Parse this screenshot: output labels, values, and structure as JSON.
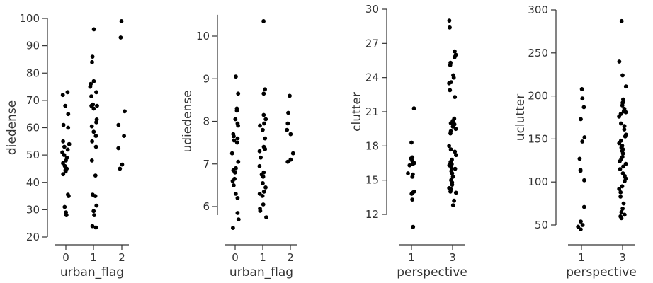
{
  "chart_data": [
    {
      "type": "scatter",
      "xlabel": "urban_flag",
      "ylabel": "diedense",
      "categories": [
        "0",
        "1",
        "2"
      ],
      "ylim": [
        20,
        100
      ],
      "yticks": [
        20,
        30,
        40,
        50,
        60,
        70,
        80,
        90,
        100
      ],
      "points": [
        {
          "x": "0",
          "y": [
            73,
            72,
            68,
            65,
            61,
            60,
            55,
            54,
            53,
            52,
            51,
            50,
            49,
            48,
            47,
            46,
            45,
            44.5,
            44,
            43,
            35.5,
            35,
            31,
            29,
            28
          ]
        },
        {
          "x": "1",
          "y": [
            96,
            86,
            84,
            77,
            76,
            75,
            73,
            71.5,
            68.5,
            68,
            68,
            67,
            63,
            62,
            60.5,
            58.5,
            57,
            55,
            53,
            48,
            42.5,
            35.5,
            35,
            31.5,
            29.5,
            28,
            24,
            23.5
          ]
        },
        {
          "x": "2",
          "y": [
            99,
            93,
            66,
            61,
            57,
            52.5,
            46.5,
            45
          ]
        }
      ]
    },
    {
      "type": "scatter",
      "xlabel": "urban_flag",
      "ylabel": "udiedense",
      "categories": [
        "0",
        "1",
        "2"
      ],
      "ylim": [
        5.8,
        10.5
      ],
      "yticks": [
        6,
        7,
        8,
        9,
        10
      ],
      "points": [
        {
          "x": "0",
          "y": [
            9.05,
            8.65,
            8.3,
            8.25,
            8.05,
            7.95,
            7.9,
            7.7,
            7.65,
            7.6,
            7.55,
            7.5,
            7.25,
            7.05,
            6.9,
            6.85,
            6.8,
            6.65,
            6.6,
            6.5,
            6.3,
            6.2,
            5.85,
            5.7,
            5.5
          ]
        },
        {
          "x": "1",
          "y": [
            10.35,
            8.75,
            8.65,
            8.15,
            8.05,
            7.95,
            7.9,
            7.8,
            7.6,
            7.4,
            7.35,
            7.3,
            7.15,
            6.95,
            6.8,
            6.75,
            6.7,
            6.55,
            6.45,
            6.35,
            6.3,
            6.25,
            6.05,
            5.95,
            5.9,
            5.75
          ]
        },
        {
          "x": "2",
          "y": [
            8.6,
            8.2,
            7.95,
            7.8,
            7.7,
            7.25,
            7.1,
            7.05
          ]
        }
      ]
    },
    {
      "type": "scatter",
      "xlabel": "perspective",
      "ylabel": "clutter",
      "categories": [
        "1",
        "3"
      ],
      "ylim": [
        12,
        30
      ],
      "yticks": [
        12,
        15,
        18,
        21,
        24,
        27,
        30
      ],
      "points": [
        {
          "x": "1",
          "y": [
            21.3,
            18.3,
            17,
            16.9,
            16.7,
            16.5,
            16.4,
            16.3,
            15.6,
            15.5,
            15.3,
            14,
            13.9,
            13.8,
            13.3,
            10.9
          ]
        },
        {
          "x": "3",
          "y": [
            29,
            28.4,
            26.3,
            26,
            25.8,
            25.3,
            25.1,
            24.2,
            24,
            23.6,
            23.5,
            22.9,
            22.3,
            20.4,
            20.2,
            20,
            19.9,
            19.7,
            19.5,
            19.3,
            19.1,
            18,
            17.7,
            17.5,
            17.2,
            16.8,
            16.6,
            16.4,
            16.3,
            16.1,
            16,
            15.8,
            15.6,
            15.3,
            15,
            14.8,
            14.6,
            14.3,
            14.2,
            14,
            13.9,
            13.2,
            12.8
          ]
        }
      ]
    },
    {
      "type": "scatter",
      "xlabel": "perspective",
      "ylabel": "uclutter",
      "categories": [
        "1",
        "3"
      ],
      "ylim": [
        50,
        300
      ],
      "yticks": [
        50,
        100,
        150,
        200,
        250,
        300
      ],
      "points": [
        {
          "x": "1",
          "y": [
            208,
            197,
            187,
            173,
            152,
            147,
            127,
            114,
            113,
            102,
            71,
            54,
            50,
            48,
            45
          ]
        },
        {
          "x": "3",
          "y": [
            287,
            240,
            224,
            211,
            196,
            193,
            192,
            189,
            185,
            182,
            181,
            179,
            176,
            168,
            165,
            161,
            155,
            153,
            148,
            145,
            142,
            140,
            138,
            136,
            133,
            129,
            127,
            124,
            121,
            118,
            115,
            110,
            107,
            104,
            101,
            95,
            92,
            88,
            83,
            75,
            69,
            65,
            62,
            60,
            58
          ]
        }
      ]
    }
  ]
}
